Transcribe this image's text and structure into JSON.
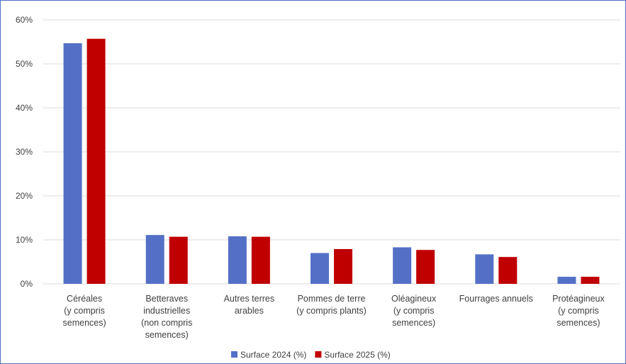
{
  "chart_data": {
    "type": "bar",
    "title": "",
    "xlabel": "",
    "ylabel": "",
    "ylim": [
      0,
      60
    ],
    "y_ticks": [
      "0%",
      "10%",
      "20%",
      "30%",
      "40%",
      "50%",
      "60%"
    ],
    "y_tick_values": [
      0,
      10,
      20,
      30,
      40,
      50,
      60
    ],
    "categories": [
      [
        "Céréales",
        "(y compris",
        "semences)"
      ],
      [
        "Betteraves",
        "industrielles",
        "(non compris",
        "semences)"
      ],
      [
        "Autres terres",
        "arables"
      ],
      [
        "Pommes de terre",
        "(y compris plants)"
      ],
      [
        "Oléagineux",
        "(y compris",
        "semences)"
      ],
      [
        "Fourrages annuels"
      ],
      [
        "Protéagineux",
        "(y compris",
        "semences)"
      ]
    ],
    "series": [
      {
        "name": "Surface 2024 (%)",
        "color": "#5470c6",
        "values": [
          54.7,
          11.1,
          10.8,
          7.0,
          8.3,
          6.7,
          1.6
        ]
      },
      {
        "name": "Surface 2025 (%)",
        "color": "#c00000",
        "values": [
          55.7,
          10.7,
          10.7,
          7.9,
          7.7,
          6.1,
          1.6
        ]
      }
    ],
    "grid": true,
    "legend": "bottom"
  }
}
